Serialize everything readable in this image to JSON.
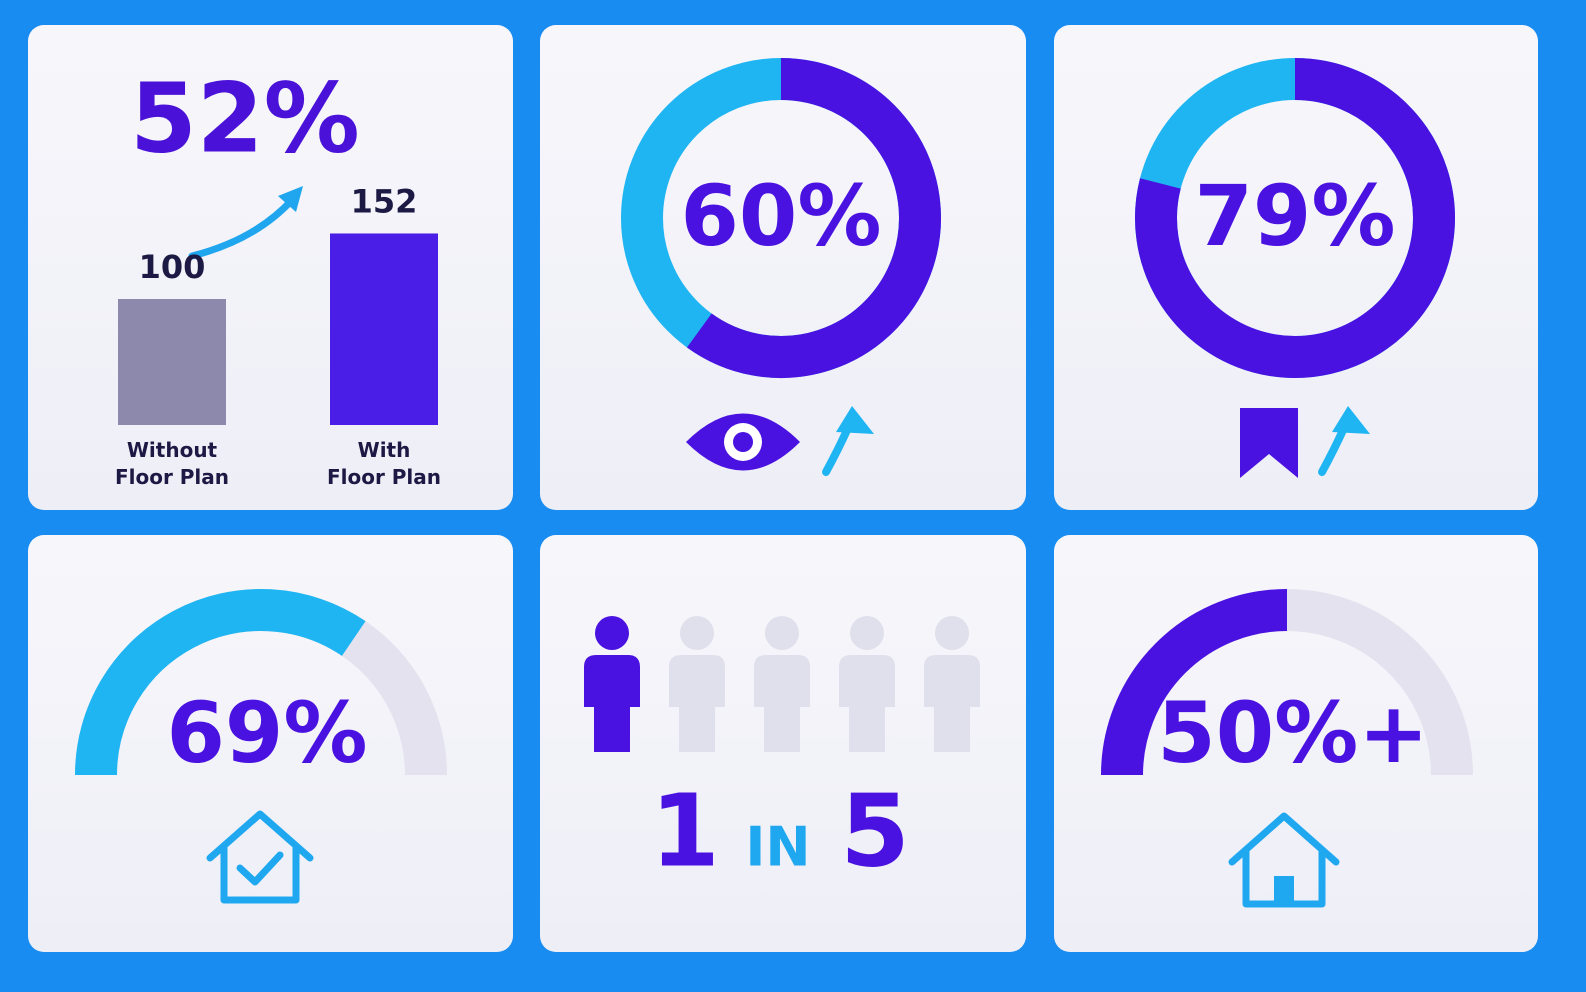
{
  "chart_data": [
    {
      "type": "bar",
      "annotation": "52%",
      "categories": [
        "Without\nFloor Plan",
        "With\nFloor Plan"
      ],
      "values": [
        100,
        152
      ],
      "colors": [
        "#8d89ac",
        "#4a1ee6"
      ],
      "annotation_color": "#4a12d8"
    },
    {
      "type": "donut",
      "values": [
        60
      ],
      "value_labels": [
        "60%"
      ],
      "color": "#4a12e0",
      "track_color": "#1fb5f2"
    },
    {
      "type": "donut",
      "values": [
        79
      ],
      "value_labels": [
        "79%"
      ],
      "color": "#4a12e0",
      "track_color": "#1fb5f2"
    },
    {
      "type": "gauge",
      "values": [
        69
      ],
      "value_labels": [
        "69%"
      ],
      "color": "#1fb5f2",
      "track_color": "#e3e2ee"
    },
    {
      "type": "pictogram",
      "highlighted": 1,
      "joiner": "IN",
      "total": 5,
      "color": "#4a12e0",
      "muted_color": "#e0dfec"
    },
    {
      "type": "gauge",
      "values": [
        50
      ],
      "value_labels": [
        "50%+"
      ],
      "color": "#4a12e0",
      "track_color": "#e3e2ee"
    }
  ]
}
